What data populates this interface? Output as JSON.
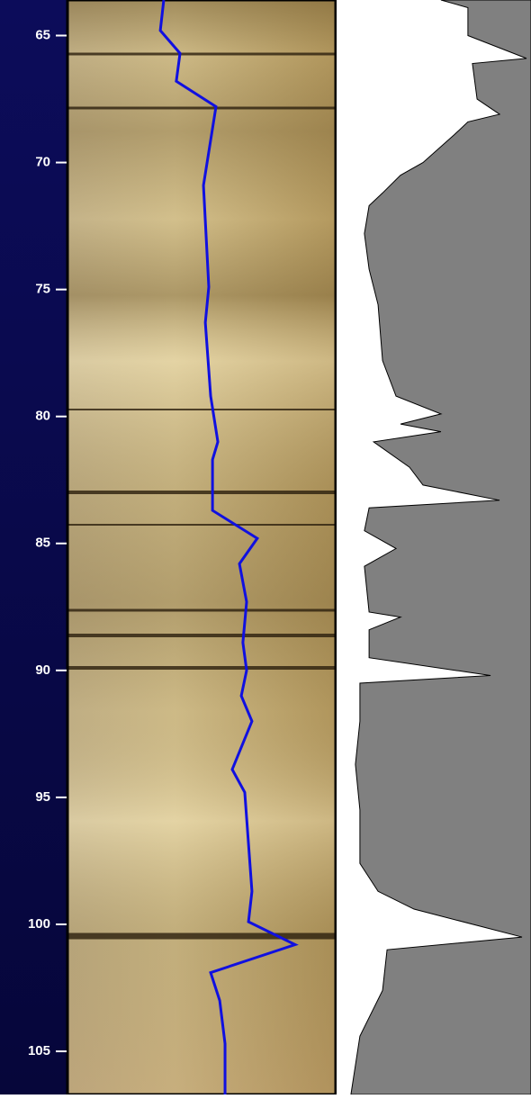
{
  "chart_data": [
    {
      "type": "line",
      "orientation": "vertical",
      "color": "#1010e0",
      "xlim": [
        63.6,
        106.7
      ],
      "xticks": [
        65,
        70,
        75,
        80,
        85,
        90,
        95,
        100,
        105
      ],
      "ylim": [
        0,
        100
      ],
      "x": [
        63.6,
        64.8,
        65.7,
        66.8,
        67.8,
        70.9,
        74.9,
        76.3,
        79.2,
        81.0,
        81.7,
        83.7,
        84.8,
        85.8,
        87.3,
        88.9,
        90.0,
        91.0,
        92.0,
        93.9,
        94.8,
        98.7,
        99.9,
        100.8,
        101.9,
        103.0,
        104.7,
        106.7
      ],
      "values": [
        35.8,
        34.5,
        41.9,
        40.5,
        55.4,
        50.7,
        52.7,
        51.4,
        53.4,
        56.1,
        54.1,
        54.1,
        70.9,
        64.2,
        66.9,
        65.5,
        66.9,
        64.9,
        68.9,
        61.5,
        66.2,
        68.9,
        67.6,
        85.1,
        53.4,
        56.8,
        58.8,
        58.8
      ]
    },
    {
      "type": "area",
      "orientation": "vertical",
      "color": "#808080",
      "xlim": [
        63.6,
        106.7
      ],
      "ylim": [
        0,
        100
      ],
      "x": [
        63.6,
        63.9,
        65.0,
        65.9,
        66.1,
        67.5,
        68.1,
        68.4,
        68.9,
        70.0,
        70.5,
        71.2,
        71.7,
        72.8,
        74.2,
        75.6,
        77.8,
        79.2,
        79.9,
        80.3,
        80.6,
        81.0,
        82.0,
        82.7,
        83.3,
        83.6,
        84.5,
        85.2,
        85.9,
        87.7,
        87.9,
        88.4,
        89.5,
        90.2,
        90.5,
        92.0,
        93.7,
        95.5,
        97.6,
        98.7,
        99.4,
        100.5,
        101.0,
        102.6,
        104.4,
        106.7
      ],
      "values": [
        53.9,
        67.7,
        67.7,
        97.7,
        70.0,
        72.4,
        83.9,
        67.7,
        60.8,
        44.7,
        33.2,
        24.0,
        17.1,
        14.7,
        17.1,
        21.7,
        24.0,
        30.9,
        53.9,
        33.2,
        53.9,
        19.4,
        37.8,
        44.7,
        83.9,
        17.1,
        14.7,
        30.9,
        14.7,
        17.1,
        33.2,
        17.1,
        17.1,
        79.3,
        12.4,
        12.4,
        10.1,
        12.4,
        12.4,
        21.7,
        40.1,
        95.4,
        26.3,
        24.0,
        12.4,
        7.8
      ]
    }
  ]
}
